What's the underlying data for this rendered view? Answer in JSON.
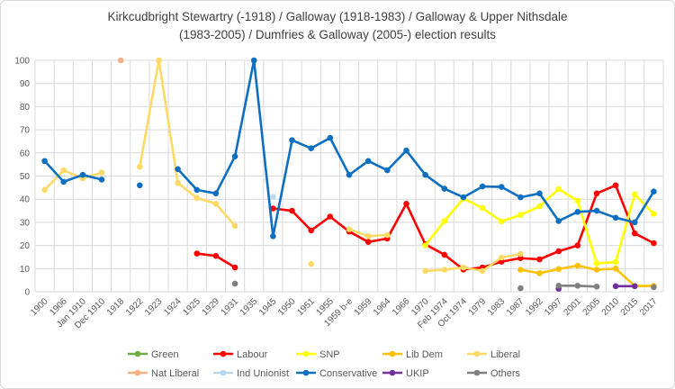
{
  "chart_data": {
    "type": "line",
    "title_line1": "Kirkcudbright Stewartry (-1918) / Galloway (1918-1983) / Galloway & Upper Nithsdale",
    "title_line2": "(1983-2005) / Dumfries & Galloway (2005-) election results",
    "ylim": [
      0,
      100
    ],
    "ytick_step": 10,
    "grid": true,
    "legend_position": "bottom",
    "categories": [
      "1900",
      "1906",
      "Jan 1910",
      "Dec 1910",
      "1918",
      "1922",
      "1923",
      "1924",
      "1925",
      "1929",
      "1931",
      "1935",
      "1945",
      "1950",
      "1951",
      "1955",
      "1959 b-e",
      "1959",
      "1964",
      "1966",
      "1970",
      "Feb 1974",
      "Oct 1974",
      "1979",
      "1983",
      "1987",
      "1992",
      "1997",
      "2001",
      "2005",
      "2010",
      "2015",
      "2017"
    ],
    "series": [
      {
        "name": "Green",
        "color": "#70AD47",
        "values": [
          null,
          null,
          null,
          null,
          null,
          null,
          null,
          null,
          null,
          null,
          null,
          null,
          null,
          null,
          null,
          null,
          null,
          null,
          null,
          null,
          null,
          null,
          null,
          null,
          null,
          null,
          null,
          null,
          null,
          null,
          null,
          null,
          null
        ]
      },
      {
        "name": "Labour",
        "color": "#FF0000",
        "values": [
          null,
          null,
          null,
          null,
          null,
          null,
          null,
          null,
          16.5,
          15.5,
          10.5,
          null,
          36,
          35,
          26.5,
          32.5,
          26,
          21.5,
          23,
          38,
          20.5,
          16,
          9.6,
          10.5,
          13,
          14.5,
          14,
          17.5,
          20,
          42.5,
          46,
          25.2,
          21
        ]
      },
      {
        "name": "SNP",
        "color": "#FFFF00",
        "values": [
          null,
          null,
          null,
          null,
          null,
          null,
          null,
          null,
          null,
          null,
          null,
          null,
          null,
          null,
          null,
          null,
          null,
          null,
          null,
          null,
          20,
          30.5,
          40.3,
          36.2,
          30.4,
          33.2,
          36.9,
          44.4,
          39.3,
          12.2,
          12.8,
          42.1,
          33.6
        ]
      },
      {
        "name": "Lib Dem",
        "color": "#FFC000",
        "values": [
          null,
          null,
          null,
          null,
          null,
          null,
          null,
          null,
          null,
          null,
          null,
          null,
          null,
          null,
          null,
          null,
          null,
          null,
          null,
          null,
          null,
          null,
          null,
          null,
          null,
          9.5,
          8,
          9.8,
          11.3,
          9.5,
          10,
          2.5,
          2.5
        ]
      },
      {
        "name": "Liberal",
        "color": "#FFD966",
        "values": [
          44,
          52.5,
          49,
          51.5,
          null,
          54,
          100,
          47,
          40.5,
          38,
          28.5,
          null,
          null,
          null,
          12,
          null,
          27,
          24,
          24.5,
          null,
          9,
          9.5,
          10.5,
          9,
          14.8,
          16.3,
          null,
          null,
          null,
          null,
          null,
          null,
          null
        ]
      },
      {
        "name": "Nat Liberal",
        "color": "#F4B183",
        "values": [
          null,
          null,
          null,
          null,
          100,
          null,
          null,
          null,
          null,
          null,
          null,
          null,
          null,
          null,
          null,
          null,
          null,
          null,
          null,
          null,
          null,
          null,
          null,
          null,
          null,
          null,
          null,
          null,
          null,
          null,
          null,
          null,
          null
        ]
      },
      {
        "name": "Ind Unionist",
        "color": "#BDD7EE",
        "values": [
          null,
          null,
          null,
          null,
          null,
          null,
          null,
          null,
          null,
          null,
          null,
          null,
          41,
          null,
          null,
          null,
          null,
          null,
          null,
          null,
          null,
          null,
          null,
          null,
          null,
          null,
          null,
          null,
          null,
          null,
          null,
          null,
          null
        ]
      },
      {
        "name": "Conservative",
        "color": "#0E6FC1",
        "values": [
          56.5,
          47.5,
          50.5,
          48.5,
          null,
          46,
          null,
          53,
          44,
          42.5,
          58.5,
          100,
          24,
          65.5,
          62,
          66.5,
          50.5,
          56.5,
          52.5,
          61,
          50.5,
          44.5,
          40.8,
          45.5,
          45.3,
          40.8,
          42.5,
          30.6,
          34.5,
          35,
          32,
          30,
          43.3
        ]
      },
      {
        "name": "UKIP",
        "color": "#7030A0",
        "values": [
          null,
          null,
          null,
          null,
          null,
          null,
          null,
          null,
          null,
          null,
          null,
          null,
          null,
          null,
          null,
          null,
          null,
          null,
          null,
          null,
          null,
          null,
          null,
          null,
          null,
          null,
          null,
          1.3,
          null,
          null,
          2.4,
          2.4,
          null
        ]
      },
      {
        "name": "Others",
        "color": "#808080",
        "values": [
          null,
          null,
          null,
          null,
          null,
          null,
          null,
          null,
          null,
          null,
          3.5,
          null,
          null,
          null,
          null,
          null,
          null,
          null,
          null,
          null,
          null,
          null,
          null,
          null,
          null,
          1.5,
          null,
          2.6,
          2.6,
          2.2,
          null,
          null,
          2
        ]
      }
    ]
  }
}
